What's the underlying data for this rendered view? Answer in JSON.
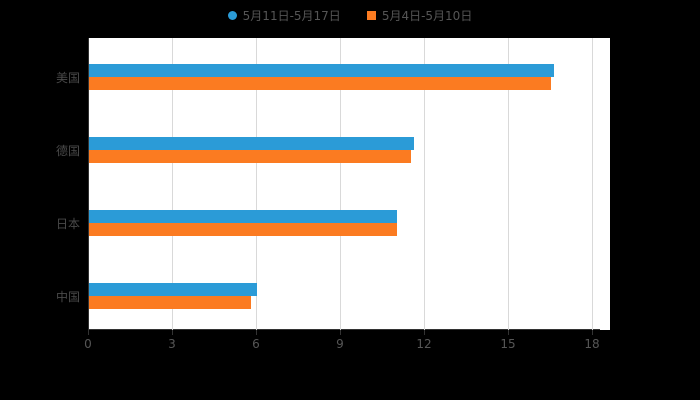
{
  "page": {
    "background_color": "#000000",
    "plot_background_color": "#ffffff",
    "gridline_color": "#d9d9d9",
    "axis_color": "#333333",
    "label_color": "#4a4a4a"
  },
  "legend": {
    "items": [
      {
        "label": "5月11日-5月17日",
        "color": "#2b9bd7",
        "shape": "circle"
      },
      {
        "label": "5月4日-5月10日",
        "color": "#fb7b21",
        "shape": "square"
      }
    ]
  },
  "chart_data": {
    "type": "bar",
    "orientation": "horizontal",
    "title": "",
    "xlabel": "",
    "ylabel": "",
    "categories": [
      "美国",
      "德国",
      "日本",
      "中国"
    ],
    "series": [
      {
        "name": "5月11日-5月17日",
        "color": "#2b9bd7",
        "values": [
          16.6,
          11.6,
          11.0,
          6.0
        ]
      },
      {
        "name": "5月4日-5月10日",
        "color": "#fb7b21",
        "values": [
          16.5,
          11.5,
          11.0,
          5.8
        ]
      }
    ],
    "xlim": [
      0,
      18
    ],
    "xticks": [
      0,
      3,
      6,
      9,
      12,
      15,
      18
    ],
    "grid": true,
    "legend_position": "top"
  }
}
